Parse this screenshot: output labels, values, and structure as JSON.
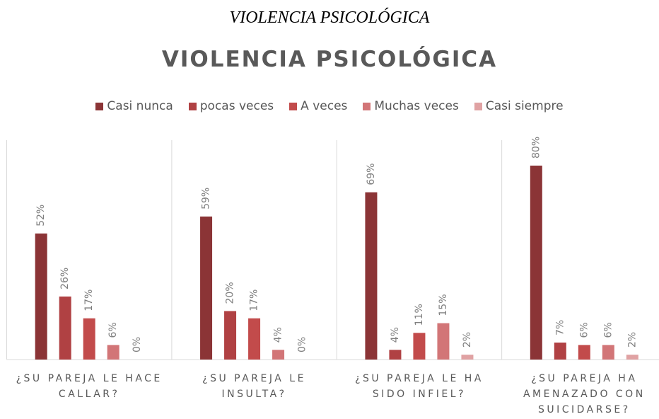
{
  "chart_data": {
    "type": "bar",
    "caption": "VIOLENCIA PSICOLÓGICA",
    "title": "VIOLENCIA PSICOLÓGICA",
    "categories": [
      "¿SU PAREJA LE HACE CALLAR?",
      "¿SU PAREJA LE INSULTA?",
      "¿SU PAREJA LE HA SIDO INFIEL?",
      "¿SU PAREJA HA AMENAZADO CON SUICIDARSE?"
    ],
    "series": [
      {
        "name": "Casi nunca",
        "color": "#8b3436",
        "values": [
          52,
          59,
          69,
          80
        ],
        "value_labels": [
          "52%",
          "59%",
          "69%",
          "80%"
        ]
      },
      {
        "name": "pocas veces",
        "color": "#b04143",
        "values": [
          26,
          20,
          4,
          7
        ],
        "value_labels": [
          "26%",
          "20%",
          "4%",
          "7%"
        ]
      },
      {
        "name": "A veces",
        "color": "#c24b4b",
        "values": [
          17,
          17,
          11,
          6
        ],
        "value_labels": [
          "17%",
          "17%",
          "11%",
          "6%"
        ]
      },
      {
        "name": "Muchas veces",
        "color": "#d27577",
        "values": [
          6,
          4,
          15,
          6
        ],
        "value_labels": [
          "6%",
          "4%",
          "15%",
          "6%"
        ]
      },
      {
        "name": "Casi siempre",
        "color": "#e0a2a3",
        "values": [
          0,
          0,
          2,
          2
        ],
        "value_labels": [
          "0%",
          "0%",
          "2%",
          "2%"
        ]
      }
    ]
  }
}
